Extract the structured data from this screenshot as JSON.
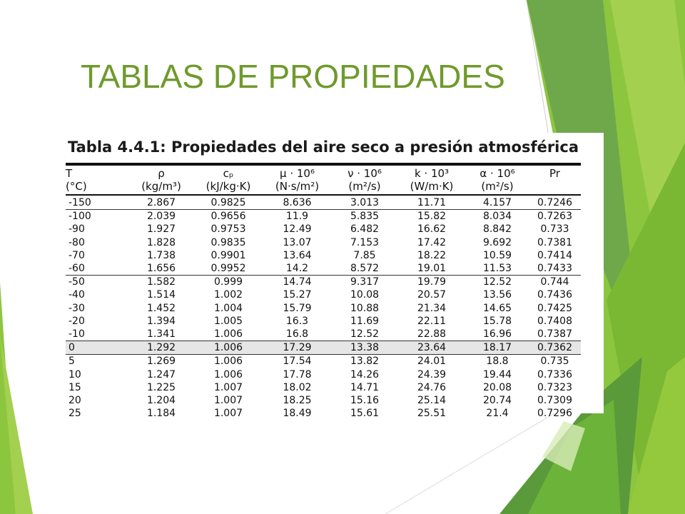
{
  "slide": {
    "title": "TABLAS DE PROPIEDADES"
  },
  "colors": {
    "title": "#6f9a2c",
    "decor_green_light": "#8cc63f",
    "decor_green_dark": "#5a9a3a",
    "row_highlight": "#e6e6e6"
  },
  "table": {
    "caption": "Tabla 4.4.1: Propiedades del aire seco a presión atmosférica",
    "headers": [
      {
        "symbol": "T",
        "unit": "(°C)"
      },
      {
        "symbol": "ρ",
        "unit": "(kg/m³)"
      },
      {
        "symbol": "cₚ",
        "unit": "(kJ/kg·K)"
      },
      {
        "symbol": "μ · 10⁶",
        "unit": "(N·s/m²)"
      },
      {
        "symbol": "ν · 10⁶",
        "unit": "(m²/s)"
      },
      {
        "symbol": "k · 10³",
        "unit": "(W/m·K)"
      },
      {
        "symbol": "α · 10⁶",
        "unit": "(m²/s)"
      },
      {
        "symbol": "Pr",
        "unit": ""
      }
    ],
    "rows": [
      [
        "-150",
        "2.867",
        "0.9825",
        "8.636",
        "3.013",
        "11.71",
        "4.157",
        "0.7246"
      ],
      [
        "-100",
        "2.039",
        "0.9656",
        "11.9",
        "5.835",
        "15.82",
        "8.034",
        "0.7263"
      ],
      [
        "-90",
        "1.927",
        "0.9753",
        "12.49",
        "6.482",
        "16.62",
        "8.842",
        "0.733"
      ],
      [
        "-80",
        "1.828",
        "0.9835",
        "13.07",
        "7.153",
        "17.42",
        "9.692",
        "0.7381"
      ],
      [
        "-70",
        "1.738",
        "0.9901",
        "13.64",
        "7.85",
        "18.22",
        "10.59",
        "0.7414"
      ],
      [
        "-60",
        "1.656",
        "0.9952",
        "14.2",
        "8.572",
        "19.01",
        "11.53",
        "0.7433"
      ],
      [
        "-50",
        "1.582",
        "0.999",
        "14.74",
        "9.317",
        "19.79",
        "12.52",
        "0.744"
      ],
      [
        "-40",
        "1.514",
        "1.002",
        "15.27",
        "10.08",
        "20.57",
        "13.56",
        "0.7436"
      ],
      [
        "-30",
        "1.452",
        "1.004",
        "15.79",
        "10.88",
        "21.34",
        "14.65",
        "0.7425"
      ],
      [
        "-20",
        "1.394",
        "1.005",
        "16.3",
        "11.69",
        "22.11",
        "15.78",
        "0.7408"
      ],
      [
        "-10",
        "1.341",
        "1.006",
        "16.8",
        "12.52",
        "22.88",
        "16.96",
        "0.7387"
      ],
      [
        "0",
        "1.292",
        "1.006",
        "17.29",
        "13.38",
        "23.64",
        "18.17",
        "0.7362"
      ],
      [
        "5",
        "1.269",
        "1.006",
        "17.54",
        "13.82",
        "24.01",
        "18.8",
        "0.735"
      ],
      [
        "10",
        "1.247",
        "1.006",
        "17.78",
        "14.26",
        "24.39",
        "19.44",
        "0.7336"
      ],
      [
        "15",
        "1.225",
        "1.007",
        "18.02",
        "14.71",
        "24.76",
        "20.08",
        "0.7323"
      ],
      [
        "20",
        "1.204",
        "1.007",
        "18.25",
        "15.16",
        "25.14",
        "20.74",
        "0.7309"
      ],
      [
        "25",
        "1.184",
        "1.007",
        "18.49",
        "15.61",
        "25.51",
        "21.4",
        "0.7296"
      ]
    ],
    "group_start_rows": [
      1,
      6,
      11,
      12
    ],
    "highlight_rows": [
      11
    ]
  }
}
